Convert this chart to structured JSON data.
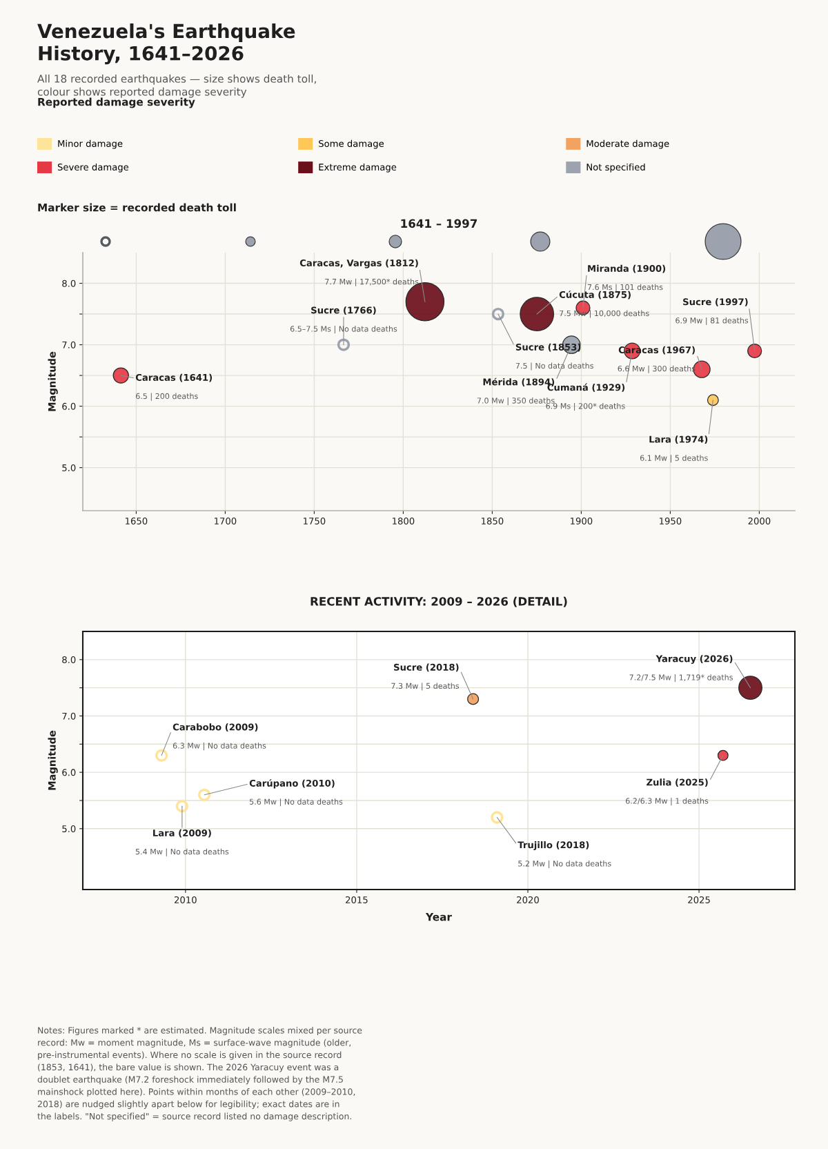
{
  "chart_data": [
    {
      "type": "bubble",
      "title": "1641 – 1997",
      "ylabel": "Magnitude",
      "legend_title": "Reported damage severity",
      "legend": "top",
      "grid": true,
      "xlim": [
        1620,
        2020
      ],
      "xticks": [
        1650,
        1700,
        1750,
        1800,
        1850,
        1900,
        1950,
        2000
      ],
      "ylim": [
        4.3,
        8.5
      ],
      "yticks": [
        {
          "value": 5,
          "label": "5.0"
        },
        {
          "value": 5.5,
          "label": null
        },
        {
          "value": 6,
          "label": "6.0"
        },
        {
          "value": 6.5,
          "label": null
        },
        {
          "value": 7,
          "label": "7.0"
        },
        {
          "value": 7.5,
          "label": null
        },
        {
          "value": 8,
          "label": "8.0"
        }
      ],
      "series": [
        {
          "name": "Minor damage",
          "color": "#fee49a"
        },
        {
          "name": "Some damage",
          "color": "#fec757",
          "x": [
            1974.0
          ],
          "values": [
            6.1
          ],
          "sizes": [
            0.08
          ]
        },
        {
          "name": "Moderate damage",
          "color": "#f2a261"
        },
        {
          "name": "Severe damage",
          "color": "#e63946",
          "x": [
            1641.4,
            1901.0,
            1928.6,
            1967.7,
            1997.4
          ],
          "values": [
            6.5,
            7.6,
            6.9,
            6.6,
            6.9
          ],
          "sizes": [
            0.16,
            0.13,
            0.17,
            0.19,
            0.13
          ]
        },
        {
          "name": "Extreme damage",
          "color": "#6b0f1a",
          "x": [
            1812.2,
            1875.1
          ],
          "values": [
            7.7,
            7.5
          ],
          "sizes": [
            1,
            0.77
          ]
        },
        {
          "name": "Not specified",
          "color": "#9ca3af",
          "x": [
            1766.5,
            1853.3,
            1894.5
          ],
          "values": [
            7.0,
            7.5,
            7.0
          ],
          "sizes": [
            null,
            null,
            0.21
          ]
        }
      ],
      "annotations": [
        "Venezuela's Earthquake\nHistory, 1641–2026",
        "All 18 recorded earthquakes — size shows death toll,\ncolour shows reported damage severity",
        "Marker size = recorded death toll",
        {
          "text": "Caracas (1641)",
          "x": 1641.4,
          "y": 6.5
        },
        "6.5 | 200 deaths",
        {
          "text": "Sucre (1766)",
          "x": 1766.5,
          "y": 7.0
        },
        "6.5–7.5 Ms | No data deaths",
        {
          "text": "Caracas, Vargas (1812)",
          "x": 1812.2,
          "y": 7.7
        },
        "7.7 Mw | 17,500* deaths",
        {
          "text": "Sucre (1853)",
          "x": 1853.3,
          "y": 7.5
        },
        "7.5 | No data deaths",
        {
          "text": "Cúcuta (1875)",
          "x": 1875.1,
          "y": 7.5
        },
        "7.5 Mw | 10,000 deaths",
        {
          "text": "Mérida (1894)",
          "x": 1894.5,
          "y": 7.0
        },
        "7.0 Mw | 350 deaths",
        {
          "text": "Miranda (1900)",
          "x": 1901.0,
          "y": 7.6
        },
        "7.6 Ms | 101 deaths",
        {
          "text": "Cumaná (1929)",
          "x": 1928.6,
          "y": 6.9
        },
        "6.9 Ms | 200* deaths",
        {
          "text": "Caracas (1967)",
          "x": 1967.7,
          "y": 6.6
        },
        "6.6 Mw | 300 deaths",
        {
          "text": "Lara (1974)",
          "x": 1974.0,
          "y": 6.1
        },
        "6.1 Mw | 5 deaths",
        {
          "text": "Sucre (1997)",
          "x": 1997.4,
          "y": 6.9
        },
        "6.9 Mw | 81 deaths"
      ]
    },
    {
      "type": "bubble",
      "title": "RECENT ACTIVITY: 2009 – 2026 (DETAIL)",
      "xlabel": "Year",
      "ylabel": "Magnitude",
      "grid": true,
      "xlim": [
        2007.0,
        2027.8
      ],
      "xticks": [
        2010,
        2015,
        2020,
        2025
      ],
      "ylim": [
        3.92,
        8.5
      ],
      "yticks": [
        {
          "value": 5,
          "label": "5.0"
        },
        {
          "value": 5.5,
          "label": null
        },
        {
          "value": 6,
          "label": "6.0"
        },
        {
          "value": 6.5,
          "label": null
        },
        {
          "value": 7,
          "label": "7.0"
        },
        {
          "value": 7.5,
          "label": null
        },
        {
          "value": 8,
          "label": "8.0"
        }
      ],
      "series": [
        {
          "color": "#fee49a",
          "x": [
            2009.3,
            2009.9,
            2010.55,
            2019.1
          ],
          "values": [
            6.3,
            5.4,
            5.6,
            5.2
          ],
          "sizes": [
            null,
            null,
            null,
            null
          ]
        },
        {
          "color": "#f2a261",
          "x": [
            2018.4
          ],
          "values": [
            7.3
          ],
          "sizes": [
            0.22
          ]
        },
        {
          "color": "#e63946",
          "x": [
            2025.7
          ],
          "values": [
            6.3
          ],
          "sizes": [
            0.19
          ]
        },
        {
          "color": "#6b0f1a",
          "x": [
            2026.5
          ],
          "values": [
            7.5
          ],
          "sizes": [
            1
          ]
        }
      ],
      "annotations": [
        {
          "text": "Carabobo (2009)",
          "x": 2009.3,
          "y": 6.3
        },
        "6.3 Mw | No data deaths",
        {
          "text": "Lara (2009)",
          "x": 2009.9,
          "y": 5.4
        },
        "5.4 Mw | No data deaths",
        {
          "text": "Carúpano (2010)",
          "x": 2010.55,
          "y": 5.6
        },
        "5.6 Mw | No data deaths",
        {
          "text": "Sucre (2018)",
          "x": 2018.4,
          "y": 7.3
        },
        "7.3 Mw | 5 deaths",
        {
          "text": "Trujillo (2018)",
          "x": 2019.1,
          "y": 5.2
        },
        "5.2 Mw | No data deaths",
        {
          "text": "Zulia (2025)",
          "x": 2025.7,
          "y": 6.3
        },
        "6.2/6.3 Mw | 1 deaths",
        {
          "text": "Yaracuy (2026)",
          "x": 2026.5,
          "y": 7.5
        },
        "7.2/7.5 Mw | 1,719* deaths",
        "Notes: Figures marked * are estimated. Magnitude scales mixed per source\nrecord: Mw = moment magnitude, Ms = surface-wave magnitude (older,\npre-instrumental events). Where no scale is given in the source record\n(1853, 1641), the bare value is shown. The 2026 Yaracuy event was a\ndoublet earthquake (M7.2 foreshock immediately followed by the M7.5\nmainshock plotted here). Points within months of each other (2009–2010,\n2018) are nudged slightly apart below for legibility; exact dates are in\nthe labels. \"Not specified\" = source record listed no damage description."
      ]
    }
  ]
}
